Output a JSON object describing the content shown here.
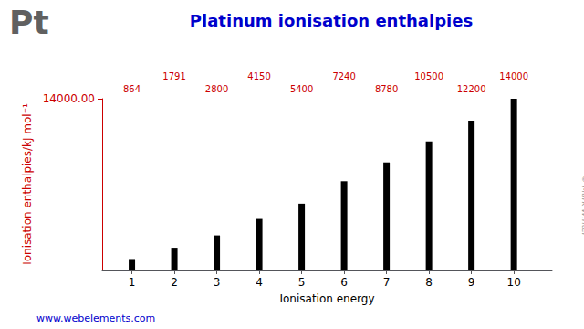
{
  "chart_data": {
    "type": "bar",
    "title": "Platinum ionisation enthalpies",
    "x": [
      1,
      2,
      3,
      4,
      5,
      6,
      7,
      8,
      9,
      10
    ],
    "values": [
      864,
      1791,
      2800,
      4150,
      5400,
      7240,
      8780,
      10500,
      12200,
      14000
    ],
    "color": "#000000",
    "xlabel": "Ionisation energy",
    "ylabel": "Ionisation enthalpies/kJ mol⁻¹",
    "xlim": [
      0.3,
      10.9
    ],
    "xticks": [
      1,
      2,
      3,
      4,
      5,
      6,
      7,
      8,
      9,
      10
    ],
    "ylim": [
      0,
      14000
    ],
    "yticks": [
      {
        "value": 14000,
        "label": "14000.00"
      }
    ],
    "grid": false,
    "data_labels": true,
    "annotations": [
      "Pt",
      "© Mark Winter",
      "www.webelements.com"
    ]
  }
}
